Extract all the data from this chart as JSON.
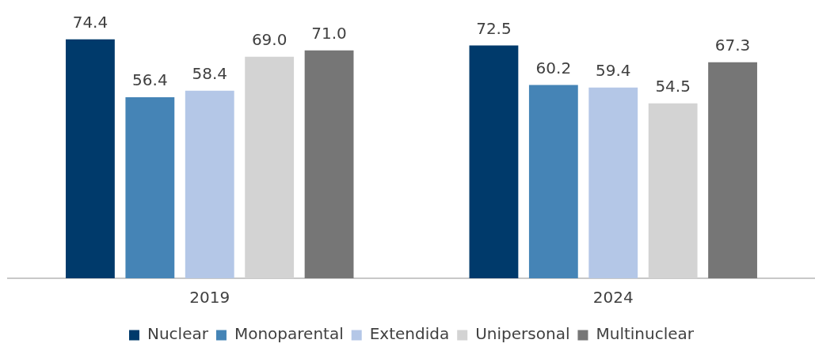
{
  "chart_data": {
    "type": "bar",
    "categories": [
      "2019",
      "2024"
    ],
    "series": [
      {
        "name": "Nuclear",
        "color": "#003a6b",
        "values": [
          74.4,
          72.5
        ],
        "value_labels": [
          "74.4",
          "72.5"
        ]
      },
      {
        "name": "Monoparental",
        "color": "#4584b6",
        "values": [
          56.4,
          60.2
        ],
        "value_labels": [
          "56.4",
          "60.2"
        ]
      },
      {
        "name": "Extendida",
        "color": "#b4c7e7",
        "values": [
          58.4,
          59.4
        ],
        "value_labels": [
          "58.4",
          "59.4"
        ]
      },
      {
        "name": "Unipersonal",
        "color": "#d3d3d3",
        "values": [
          69.0,
          54.5
        ],
        "value_labels": [
          "69.0",
          "54.5"
        ]
      },
      {
        "name": "Multinuclear",
        "color": "#767676",
        "values": [
          71.0,
          67.3
        ],
        "value_labels": [
          "71.0",
          "67.3"
        ]
      }
    ],
    "grid": false,
    "legend": "bottom"
  }
}
